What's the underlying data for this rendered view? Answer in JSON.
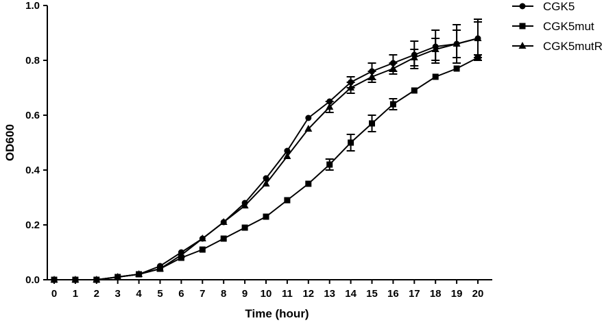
{
  "chart_data": {
    "type": "line",
    "title": "",
    "xlabel": "Time (hour)",
    "ylabel": "OD600",
    "xlim": [
      0,
      20
    ],
    "ylim": [
      0,
      1.0
    ],
    "x": [
      0,
      1,
      2,
      3,
      4,
      5,
      6,
      7,
      8,
      9,
      10,
      11,
      12,
      13,
      14,
      15,
      16,
      17,
      18,
      19,
      20
    ],
    "xticks": [
      "0",
      "1",
      "2",
      "3",
      "4",
      "5",
      "6",
      "7",
      "8",
      "9",
      "10",
      "11",
      "12",
      "13",
      "14",
      "15",
      "16",
      "17",
      "18",
      "19",
      "20"
    ],
    "yticks": [
      "0.0",
      "0.2",
      "0.4",
      "0.6",
      "0.8",
      "1.0"
    ],
    "grid": false,
    "legend_position": "top-right",
    "series": [
      {
        "name": "CGK5",
        "marker": "circle",
        "color": "#000000",
        "values": [
          0.0,
          0.0,
          0.0,
          0.01,
          0.02,
          0.05,
          0.1,
          0.15,
          0.21,
          0.28,
          0.37,
          0.47,
          0.59,
          0.65,
          0.72,
          0.76,
          0.79,
          0.82,
          0.85,
          0.86,
          0.88
        ],
        "errors": [
          0,
          0,
          0,
          0,
          0,
          0,
          0,
          0,
          0,
          0,
          0,
          0,
          0,
          0,
          0.02,
          0.03,
          0.03,
          0.05,
          0.06,
          0.07,
          0.07
        ]
      },
      {
        "name": "CGK5mut",
        "marker": "square",
        "color": "#000000",
        "values": [
          0.0,
          0.0,
          0.0,
          0.01,
          0.02,
          0.04,
          0.08,
          0.11,
          0.15,
          0.19,
          0.23,
          0.29,
          0.35,
          0.42,
          0.5,
          0.57,
          0.64,
          0.69,
          0.74,
          0.77,
          0.81
        ],
        "errors": [
          0,
          0,
          0,
          0,
          0,
          0,
          0,
          0,
          0,
          0,
          0,
          0,
          0,
          0.02,
          0.03,
          0.03,
          0.02,
          0,
          0,
          0,
          0.01
        ]
      },
      {
        "name": "CGK5mutR",
        "marker": "triangle",
        "color": "#000000",
        "values": [
          0.0,
          0.0,
          0.0,
          0.01,
          0.02,
          0.04,
          0.09,
          0.15,
          0.21,
          0.27,
          0.35,
          0.45,
          0.55,
          0.63,
          0.7,
          0.74,
          0.77,
          0.81,
          0.84,
          0.86,
          0.88
        ],
        "errors": [
          0,
          0,
          0,
          0,
          0,
          0,
          0,
          0,
          0,
          0,
          0,
          0,
          0,
          0.02,
          0.02,
          0.02,
          0.02,
          0.03,
          0.04,
          0.05,
          0.06
        ]
      }
    ]
  }
}
